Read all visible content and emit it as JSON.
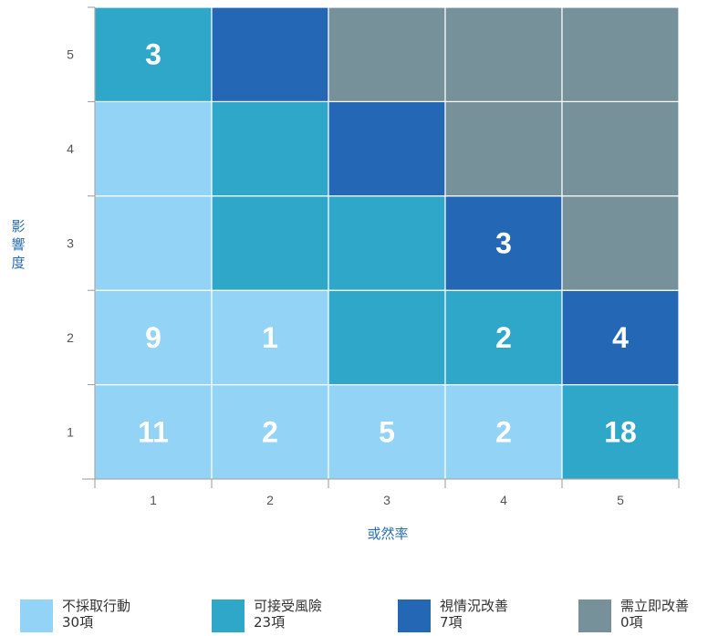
{
  "chart_data": {
    "type": "heatmap",
    "xlabel": "或然率",
    "ylabel": "影響度",
    "x_ticks": [
      "1",
      "2",
      "3",
      "4",
      "5"
    ],
    "y_ticks": [
      "1",
      "2",
      "3",
      "4",
      "5"
    ],
    "cells": [
      [
        {
          "v": "11",
          "c": 0
        },
        {
          "v": "2",
          "c": 0
        },
        {
          "v": "5",
          "c": 0
        },
        {
          "v": "2",
          "c": 0
        },
        {
          "v": "18",
          "c": 1
        }
      ],
      [
        {
          "v": "9",
          "c": 0
        },
        {
          "v": "1",
          "c": 0
        },
        {
          "v": "",
          "c": 1
        },
        {
          "v": "2",
          "c": 1
        },
        {
          "v": "4",
          "c": 2
        }
      ],
      [
        {
          "v": "",
          "c": 0
        },
        {
          "v": "",
          "c": 1
        },
        {
          "v": "",
          "c": 1
        },
        {
          "v": "3",
          "c": 2
        },
        {
          "v": "",
          "c": 3
        }
      ],
      [
        {
          "v": "",
          "c": 0
        },
        {
          "v": "",
          "c": 1
        },
        {
          "v": "",
          "c": 2
        },
        {
          "v": "",
          "c": 3
        },
        {
          "v": "",
          "c": 3
        }
      ],
      [
        {
          "v": "3",
          "c": 1
        },
        {
          "v": "",
          "c": 2
        },
        {
          "v": "",
          "c": 3
        },
        {
          "v": "",
          "c": 3
        },
        {
          "v": "",
          "c": 3
        }
      ]
    ],
    "legend": [
      {
        "label": "不採取行動",
        "count": "30項",
        "color": "#93d3f5"
      },
      {
        "label": "可接受風險",
        "count": "23項",
        "color": "#2fa7c8"
      },
      {
        "label": "視情況改善",
        "count": "7項",
        "color": "#2467b4"
      },
      {
        "label": "需立即改善",
        "count": "0項",
        "color": "#77919b"
      }
    ]
  }
}
